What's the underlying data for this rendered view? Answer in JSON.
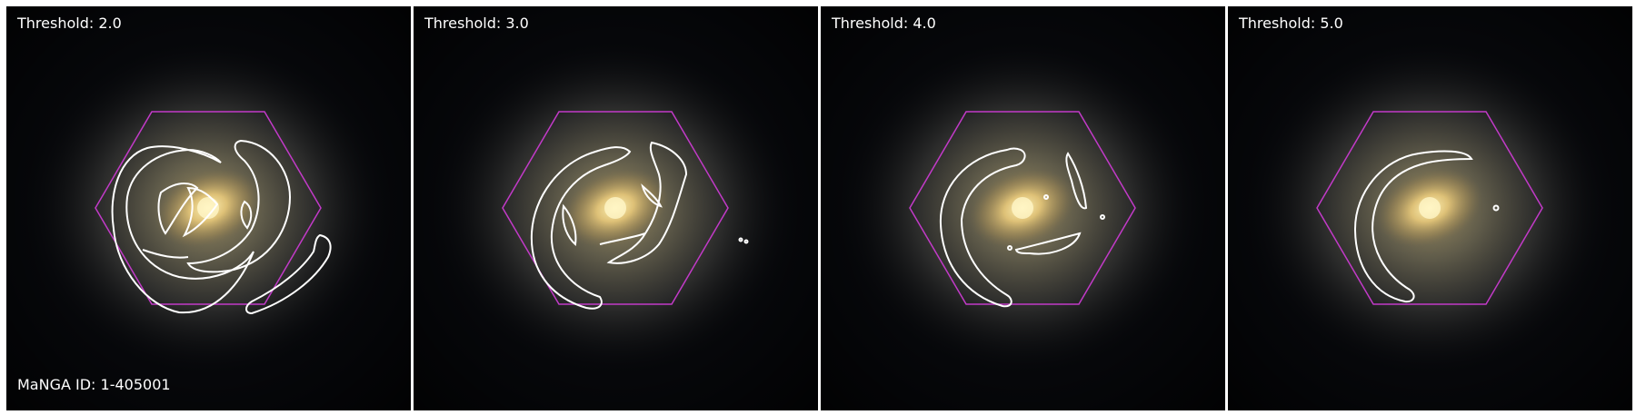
{
  "figure": {
    "manga_id_label": "MaNGA ID: 1-405001",
    "panels": [
      {
        "threshold_label": "Threshold: 2.0"
      },
      {
        "threshold_label": "Threshold: 3.0"
      },
      {
        "threshold_label": "Threshold: 4.0"
      },
      {
        "threshold_label": "Threshold: 5.0"
      }
    ],
    "colors": {
      "background": "#050608",
      "galaxy_core": "#fff0b0",
      "galaxy_halo": "#8a8060",
      "hexagon": "#c23ac8",
      "contour": "#ffffff",
      "text": "#ffffff"
    }
  }
}
